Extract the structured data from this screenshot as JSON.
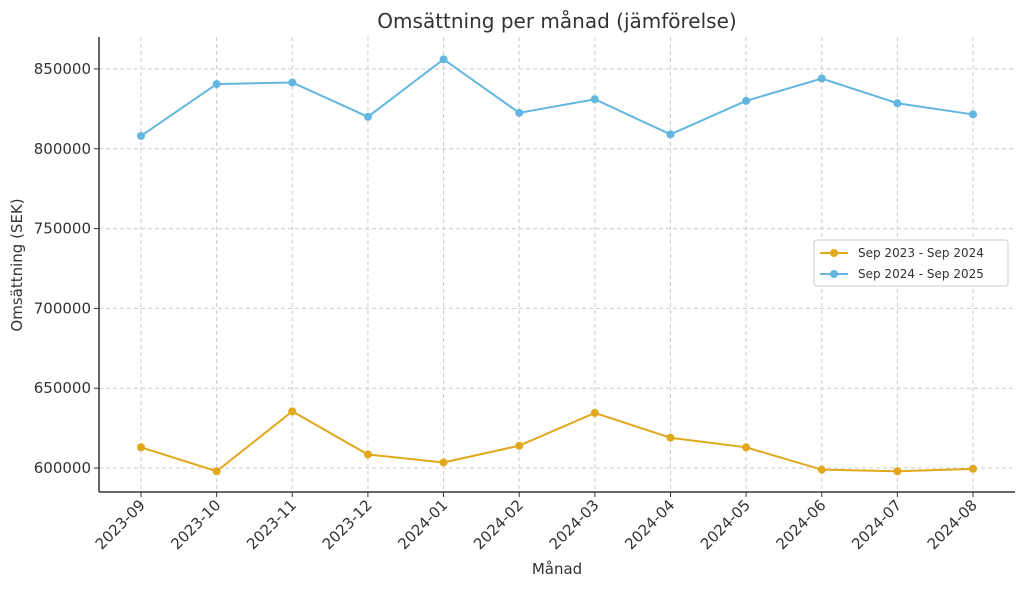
{
  "chart_data": {
    "type": "line",
    "title": "Omsättning per månad (jämförelse)",
    "xlabel": "Månad",
    "ylabel": "Omsättning (SEK)",
    "categories": [
      "2023-09",
      "2023-10",
      "2023-11",
      "2023-12",
      "2024-01",
      "2024-02",
      "2024-03",
      "2024-04",
      "2024-05",
      "2024-06",
      "2024-07",
      "2024-08"
    ],
    "ylim": [
      585000,
      870000
    ],
    "yticks": [
      600000,
      650000,
      700000,
      750000,
      800000,
      850000
    ],
    "grid": true,
    "legend_position": "center-right",
    "series": [
      {
        "name": "Sep 2023 - Sep 2024",
        "color": "#E2A81C",
        "values": [
          613000,
          598000,
          635500,
          608500,
          603500,
          614000,
          634500,
          619000,
          613000,
          599000,
          598000,
          599500
        ]
      },
      {
        "name": "Sep 2024 - Sep 2025",
        "color": "#62B6E0",
        "values": [
          808000,
          840500,
          841500,
          820000,
          856000,
          822500,
          831000,
          809000,
          830000,
          844000,
          828500,
          821500
        ]
      }
    ]
  }
}
